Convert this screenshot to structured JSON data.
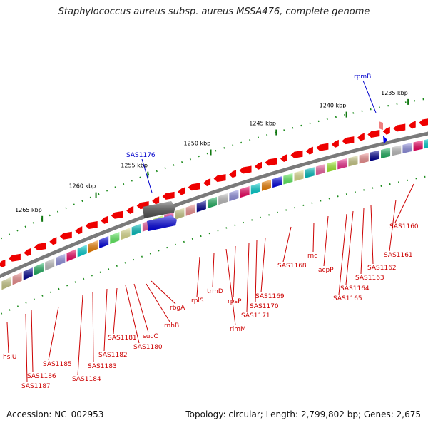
{
  "title": "Staphylococcus aureus subsp. aureus MSSA476, complete genome",
  "accession": "Accession: NC_002953",
  "topology": "Topology: circular; Length: 2,799,802 bp; Genes: 2,675",
  "kbp_ticks": [
    {
      "label": "1235 kbp",
      "pos": 0.955
    },
    {
      "label": "1240 kbp",
      "pos": 0.815
    },
    {
      "label": "1245 kbp",
      "pos": 0.655
    },
    {
      "label": "1250 kbp",
      "pos": 0.505
    },
    {
      "label": "1255 kbp",
      "pos": 0.36
    },
    {
      "label": "1260 kbp",
      "pos": 0.24
    },
    {
      "label": "1265 kbp",
      "pos": 0.115
    }
  ],
  "highlighted_genes": [
    "rpmB",
    "SAS1176"
  ],
  "gene_labels": [
    "SAS1160",
    "SAS1161",
    "SAS1162",
    "SAS1163",
    "SAS1164",
    "SAS1165",
    "acpP",
    "rnc",
    "SAS1168",
    "SAS1169",
    "SAS1170",
    "SAS1171",
    "rpsP",
    "rimM",
    "trmD",
    "rplS",
    "rbgA",
    "rnhB",
    "sucC",
    "SAS1180",
    "SAS1181",
    "SAS1182",
    "SAS1183",
    "SAS1184",
    "SAS1185",
    "SAS1186",
    "SAS1187",
    "hslU"
  ],
  "colors": {
    "forward_gene": "#ee0000",
    "highlight_gene": "#0000ee",
    "backbone": "#888888",
    "tick": "#117711",
    "leader_red": "#cc0000",
    "leader_blue": "#0000cc"
  }
}
